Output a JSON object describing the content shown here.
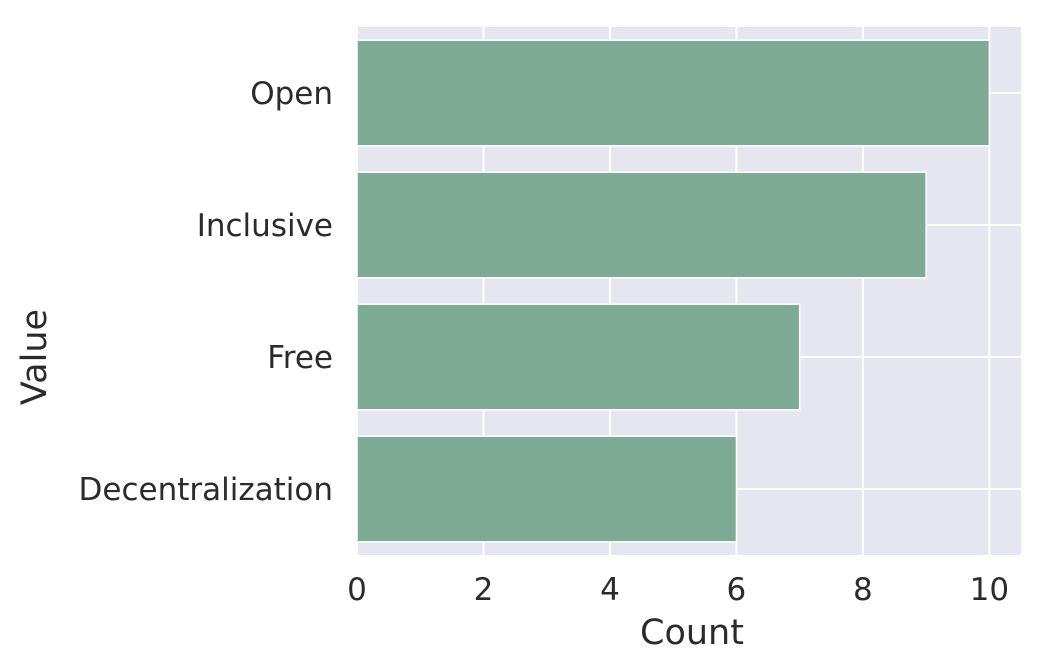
{
  "chart_data": {
    "type": "bar",
    "orientation": "horizontal",
    "categories": [
      "Open",
      "Inclusive",
      "Free",
      "Decentralization"
    ],
    "values": [
      10,
      9,
      7,
      6
    ],
    "title": "",
    "xlabel": "Count",
    "ylabel": "Value",
    "xlim": [
      0,
      10.5
    ],
    "xticks": [
      0,
      2,
      4,
      6,
      8,
      10
    ],
    "grid": true,
    "legend": "none",
    "colors": {
      "bar": "#7eab96",
      "plot_background": "#e5e6f0",
      "grid": "#ffffff",
      "text": "#2b2b2b"
    }
  }
}
